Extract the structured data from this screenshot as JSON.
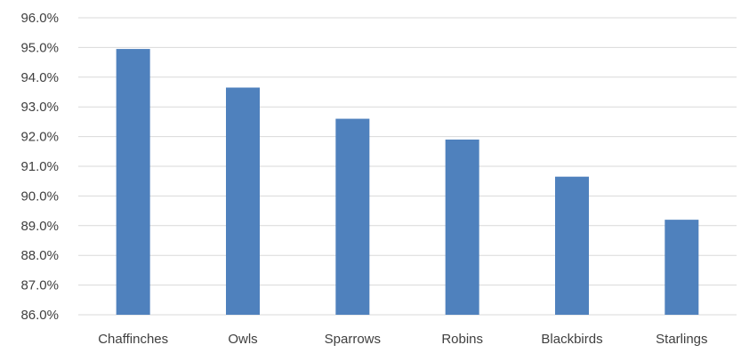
{
  "chart_data": {
    "type": "bar",
    "categories": [
      "Chaffinches",
      "Owls",
      "Sparrows",
      "Robins",
      "Blackbirds",
      "Starlings"
    ],
    "values": [
      94.95,
      93.65,
      92.6,
      91.9,
      90.65,
      89.2
    ],
    "ylim": [
      86.0,
      96.0
    ],
    "yticks": [
      "86.0%",
      "87.0%",
      "88.0%",
      "89.0%",
      "90.0%",
      "91.0%",
      "92.0%",
      "93.0%",
      "94.0%",
      "95.0%",
      "96.0%"
    ],
    "grid": true,
    "bar_color": "#4f81bd",
    "grid_color": "#d9d9d9"
  }
}
